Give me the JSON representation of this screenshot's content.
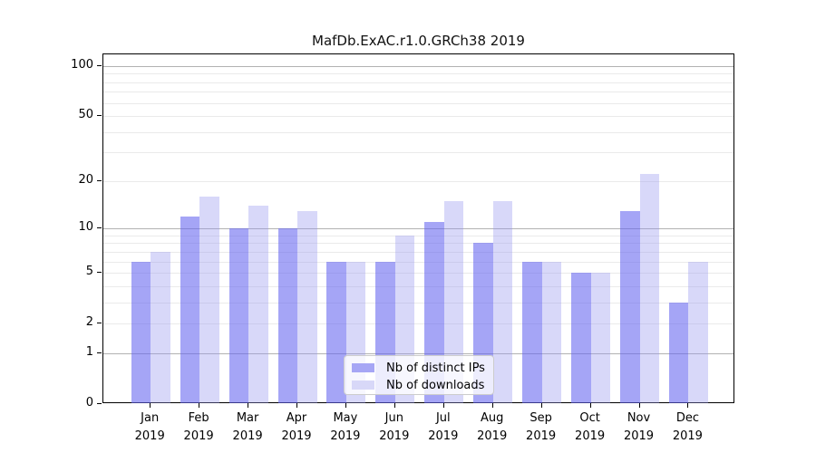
{
  "chart_data": {
    "type": "bar",
    "title": "MafDb.ExAC.r1.0.GRCh38 2019",
    "categories": [
      "Jan",
      "Feb",
      "Mar",
      "Apr",
      "May",
      "Jun",
      "Jul",
      "Aug",
      "Sep",
      "Oct",
      "Nov",
      "Dec"
    ],
    "category_sublabels": [
      "2019",
      "2019",
      "2019",
      "2019",
      "2019",
      "2019",
      "2019",
      "2019",
      "2019",
      "2019",
      "2019",
      "2019"
    ],
    "series": [
      {
        "name": "Nb of distinct IPs",
        "values": [
          6,
          12,
          10,
          10,
          6,
          6,
          11,
          8,
          6,
          5,
          13,
          3
        ],
        "fill_rgba": "rgba(100,100,240,0.58)",
        "legend_hex": "#a6a6f5"
      },
      {
        "name": "Nb of downloads",
        "values": [
          7,
          16,
          14,
          13,
          6,
          9,
          15,
          15,
          6,
          5,
          22,
          6
        ],
        "fill_rgba": "rgba(150,150,240,0.37)",
        "legend_hex": "#d8d8f8"
      }
    ],
    "yscale": "log1p",
    "ylim": [
      0,
      100
    ],
    "ytick_values": [
      0,
      1,
      2,
      5,
      10,
      20,
      50,
      100
    ],
    "ytick_labels": [
      "0",
      "1",
      "2",
      "5",
      "10",
      "20",
      "50",
      "100"
    ],
    "grid": "on",
    "grid_major_values": [
      1,
      10,
      100
    ],
    "grid_minor_values": [
      2,
      3,
      4,
      5,
      6,
      7,
      8,
      9,
      20,
      30,
      40,
      50,
      60,
      70,
      80,
      90
    ],
    "grid_major_color": "#b2b2b2",
    "grid_minor_color": "#eaeaea",
    "legend_position": "lower center",
    "xlabel": "",
    "ylabel": ""
  }
}
